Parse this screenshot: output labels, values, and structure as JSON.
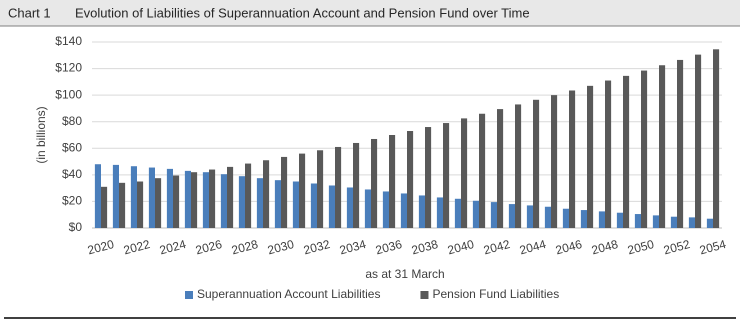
{
  "chart_data": {
    "type": "bar",
    "label": "Chart 1",
    "title": "Evolution of Liabilities of Superannuation Account and Pension Fund over Time",
    "y_label": "(in billions)",
    "x_label": "as at 31 March",
    "categories": [
      "2020",
      null,
      "2022",
      null,
      "2024",
      null,
      "2026",
      null,
      "2028",
      null,
      "2030",
      null,
      "2032",
      null,
      "2034",
      null,
      "2036",
      null,
      "2038",
      null,
      "2040",
      null,
      "2042",
      null,
      "2044",
      null,
      "2046",
      null,
      "2048",
      null,
      "2050",
      null,
      "2052",
      null,
      "2054"
    ],
    "series": [
      {
        "name": "Superannuation Account Liabilities",
        "color": "#4a7ebb",
        "values": [
          48,
          47.5,
          46.5,
          45.5,
          44.5,
          43,
          42,
          40.5,
          39,
          37.5,
          36,
          35,
          33.5,
          32,
          30.5,
          29,
          27.5,
          26,
          24.5,
          23,
          22,
          20.5,
          19.5,
          18,
          17,
          16,
          14.5,
          13.5,
          12.5,
          11.5,
          10.5,
          9.5,
          8.5,
          8,
          7
        ]
      },
      {
        "name": "Pension Fund Liabilities",
        "color": "#595959",
        "values": [
          31,
          34,
          35,
          37.5,
          39.5,
          42,
          44,
          46,
          48.5,
          51,
          53.5,
          56,
          58.5,
          61,
          64,
          67,
          70,
          73,
          76,
          79,
          82.5,
          86,
          89.5,
          93,
          96.5,
          100,
          103.5,
          107,
          111,
          114.5,
          118.5,
          122.5,
          126.5,
          130.5,
          134.5
        ]
      }
    ],
    "ylim": [
      0,
      140
    ],
    "yticks": [
      {
        "value": 0,
        "label": "$0"
      },
      {
        "value": 20,
        "label": "$20"
      },
      {
        "value": 40,
        "label": "$40"
      },
      {
        "value": 60,
        "label": "$60"
      },
      {
        "value": 80,
        "label": "$80"
      },
      {
        "value": 100,
        "label": "$100"
      },
      {
        "value": 120,
        "label": "$120"
      },
      {
        "value": 140,
        "label": "$140"
      }
    ],
    "grid": true,
    "legend": "bottom"
  }
}
